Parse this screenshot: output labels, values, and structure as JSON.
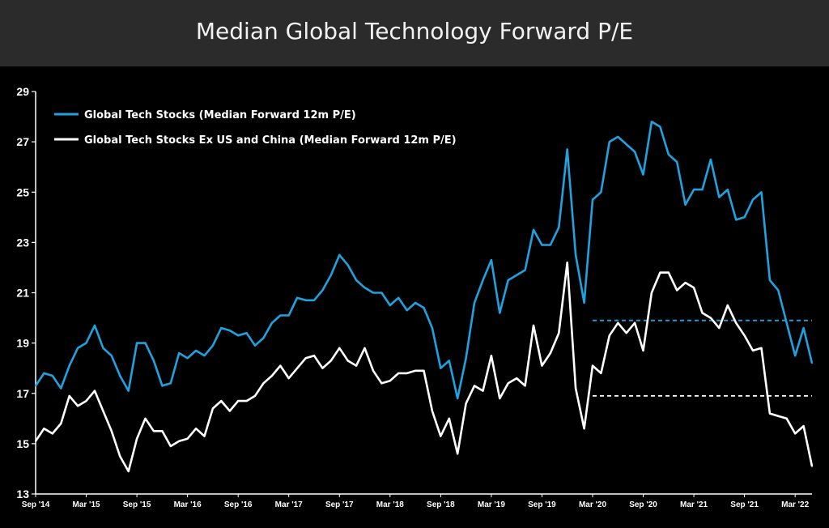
{
  "title": "Median Global Technology Forward P/E",
  "chart_data": {
    "type": "line",
    "ylim": [
      13,
      29
    ],
    "yticks": [
      13,
      15,
      17,
      19,
      21,
      23,
      25,
      27,
      29
    ],
    "xtick_labels": [
      "Sep '14",
      "Mar '15",
      "Sep '15",
      "Mar '16",
      "Sep '16",
      "Mar '17",
      "Sep '17",
      "Mar '18",
      "Sep '18",
      "Mar '19",
      "Sep '19",
      "Mar '20",
      "Sep '20",
      "Mar '21",
      "Sep '21",
      "Mar '22"
    ],
    "x_start": "2014-09",
    "x_end": "2022-05",
    "series": [
      {
        "name": "Global Tech Stocks (Median Forward 12m P/E)",
        "color": "#1fa3e0",
        "values": [
          17.3,
          17.8,
          17.7,
          17.2,
          18.1,
          18.8,
          19.0,
          19.7,
          18.8,
          18.5,
          17.7,
          17.1,
          19.0,
          19.0,
          18.3,
          17.3,
          17.4,
          18.6,
          18.4,
          18.7,
          18.5,
          18.9,
          19.6,
          19.5,
          19.3,
          19.4,
          18.9,
          19.2,
          19.8,
          20.1,
          20.1,
          20.8,
          20.7,
          20.7,
          21.1,
          21.7,
          22.5,
          22.1,
          21.5,
          21.2,
          21.0,
          21.0,
          20.5,
          20.8,
          20.3,
          20.6,
          20.4,
          19.6,
          18.0,
          18.3,
          16.8,
          18.4,
          20.6,
          21.5,
          22.3,
          20.2,
          21.5,
          21.7,
          21.9,
          23.5,
          22.9,
          22.9,
          23.6,
          26.7,
          22.5,
          20.6,
          24.7,
          25.0,
          27.0,
          27.2,
          26.9,
          26.6,
          25.7,
          27.8,
          27.6,
          26.5,
          26.2,
          24.5,
          25.1,
          25.1,
          26.3,
          24.8,
          25.1,
          23.9,
          24.0,
          24.7,
          25.0,
          21.5,
          21.1,
          19.8,
          18.5,
          19.6,
          18.2
        ],
        "ref_line": 19.9
      },
      {
        "name": "Global Tech Stocks Ex US and China (Median Forward 12m P/E)",
        "color": "#ffffff",
        "values": [
          15.1,
          15.6,
          15.4,
          15.8,
          16.9,
          16.5,
          16.7,
          17.1,
          16.3,
          15.5,
          14.5,
          13.9,
          15.2,
          16.0,
          15.5,
          15.5,
          14.9,
          15.1,
          15.2,
          15.6,
          15.3,
          16.4,
          16.7,
          16.3,
          16.7,
          16.7,
          16.9,
          17.4,
          17.7,
          18.1,
          17.6,
          18.0,
          18.4,
          18.5,
          18.0,
          18.3,
          18.8,
          18.3,
          18.1,
          18.8,
          17.9,
          17.4,
          17.5,
          17.8,
          17.8,
          17.9,
          17.9,
          16.3,
          15.3,
          16.0,
          14.6,
          16.6,
          17.3,
          17.1,
          18.5,
          16.8,
          17.4,
          17.6,
          17.3,
          19.7,
          18.1,
          18.6,
          19.4,
          22.2,
          17.2,
          15.6,
          18.1,
          17.8,
          19.3,
          19.8,
          19.4,
          19.8,
          18.7,
          21.0,
          21.8,
          21.8,
          21.1,
          21.4,
          21.2,
          20.2,
          20.0,
          19.6,
          20.5,
          19.8,
          19.3,
          18.7,
          18.8,
          16.2,
          16.1,
          16.0,
          15.4,
          15.7,
          14.1
        ],
        "ref_line": 16.9
      }
    ],
    "ref_line_start": "2020-03",
    "grid": false,
    "legend_position": "top-left"
  }
}
